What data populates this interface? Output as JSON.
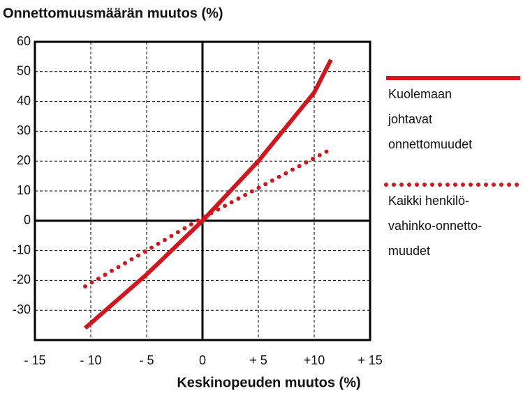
{
  "chart_data": {
    "type": "line",
    "title": "Onnettomuusmäärän muutos (%)",
    "x_label": "Keskinopeuden muutos (%)",
    "x": [
      -10.5,
      -5,
      0,
      5,
      10,
      11.5
    ],
    "series": [
      {
        "name": [
          "Kuolemaan",
          "johtavat",
          "onnettomuudet"
        ],
        "color": "#d4151e",
        "dash": "solid",
        "values": [
          -36,
          -18,
          0,
          20,
          43,
          54
        ]
      },
      {
        "name": [
          "Kaikki henkilö-",
          "vahinko-onnetto-",
          "muudet"
        ],
        "color": "#d4151e",
        "dash": "dotted",
        "values": [
          -22,
          -10,
          1,
          11,
          21,
          24
        ]
      }
    ],
    "xlim": [
      -15,
      15
    ],
    "ylim": [
      -40,
      60
    ],
    "xticks": [
      {
        "value": -15,
        "label": "- 15"
      },
      {
        "value": -10,
        "label": "- 10"
      },
      {
        "value": -5,
        "label": "- 5"
      },
      0,
      {
        "value": 5,
        "label": "+ 5"
      },
      {
        "value": 10,
        "label": "+10"
      },
      {
        "value": 15,
        "label": "+ 15"
      }
    ],
    "yticks": [
      -30,
      -20,
      -10,
      0,
      10,
      20,
      30,
      40,
      50,
      60
    ],
    "grid": true,
    "legend": "right"
  }
}
